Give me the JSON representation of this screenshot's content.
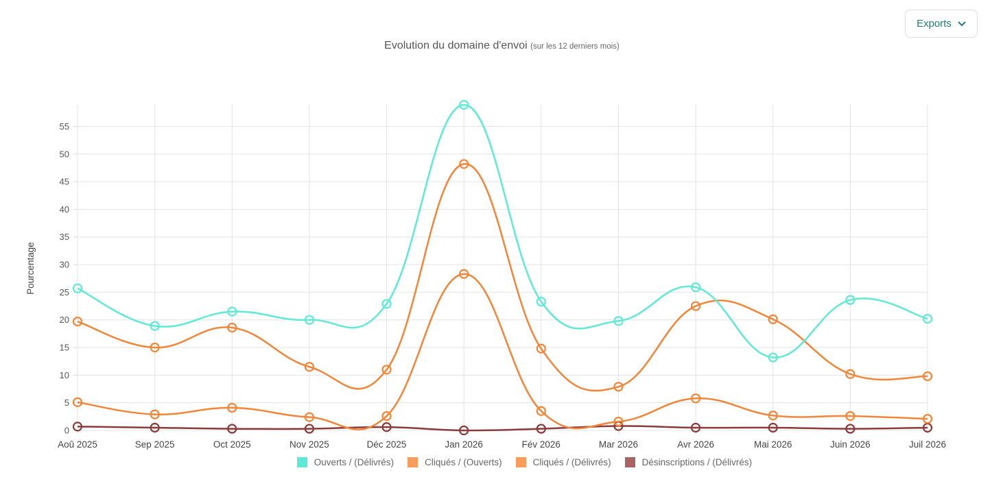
{
  "toolbar": {
    "exports_label": "Exports"
  },
  "chart_data": {
    "type": "line",
    "title": "Evolution du domaine d'envoi",
    "subtitle": "(sur les 12 derniers mois)",
    "xlabel": "",
    "ylabel": "Pourcentage",
    "categories": [
      "Aoû 2025",
      "Sep 2025",
      "Oct 2025",
      "Nov 2025",
      "Déc 2025",
      "Jan 2026",
      "Fév 2026",
      "Mar 2026",
      "Avr 2026",
      "Mai 2026",
      "Juin 2026",
      "Juil 2026"
    ],
    "yticks": [
      0,
      5,
      10,
      15,
      20,
      25,
      30,
      35,
      40,
      45,
      50,
      55
    ],
    "ylim": [
      0,
      58.9
    ],
    "grid": true,
    "legend_position": "bottom",
    "series": [
      {
        "name": "Ouverts / (Délivrés)",
        "color": "#5eead4",
        "values": [
          25.7,
          18.9,
          21.5,
          20.0,
          22.9,
          58.9,
          23.3,
          19.8,
          25.9,
          13.2,
          23.6,
          20.2
        ]
      },
      {
        "name": "Cliqués / (Ouverts)",
        "color": "#f28537",
        "legend_color": "#fb9d5a",
        "values": [
          19.7,
          15.0,
          18.6,
          11.5,
          11.0,
          48.2,
          14.8,
          7.9,
          22.5,
          20.1,
          10.2,
          9.8
        ]
      },
      {
        "name": "Cliqués / (Délivrés)",
        "color": "#f28537",
        "legend_color": "#fb9d5a",
        "values": [
          5.1,
          2.9,
          4.1,
          2.4,
          2.6,
          28.3,
          3.5,
          1.6,
          5.8,
          2.7,
          2.6,
          2.1
        ]
      },
      {
        "name": "Désinscriptions / (Délivrés)",
        "color": "#8b3a3a",
        "legend_color": "#a86464",
        "values": [
          0.7,
          0.5,
          0.3,
          0.3,
          0.6,
          0.0,
          0.3,
          0.8,
          0.5,
          0.5,
          0.3,
          0.5
        ]
      }
    ]
  }
}
